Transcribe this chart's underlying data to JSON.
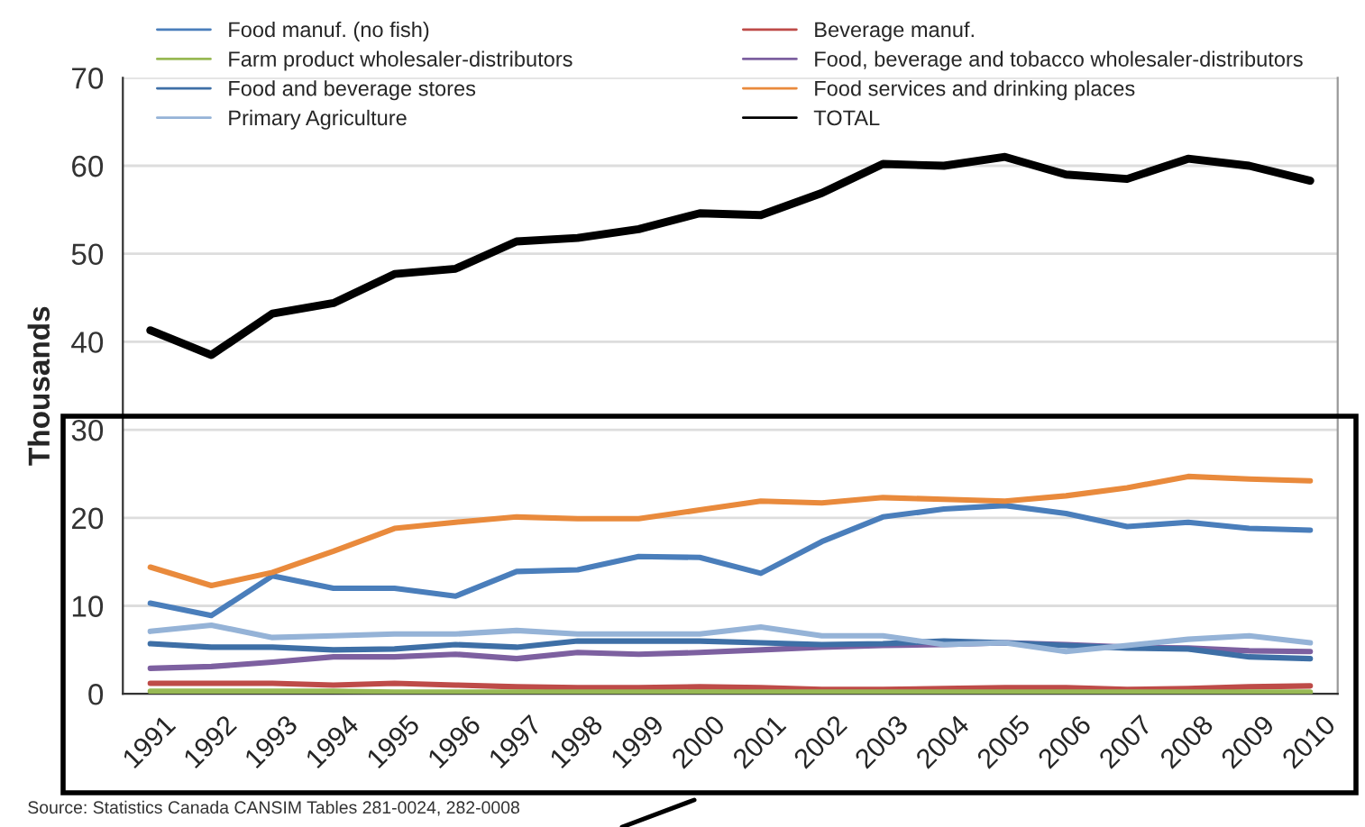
{
  "chart_data": {
    "type": "line",
    "ylabel": "Thousands",
    "categories": [
      "1991",
      "1992",
      "1993",
      "1994",
      "1995",
      "1996",
      "1997",
      "1998",
      "1999",
      "2000",
      "2001",
      "2002",
      "2003",
      "2004",
      "2005",
      "2006",
      "2007",
      "2008",
      "2009",
      "2010"
    ],
    "series": [
      {
        "name": "Food manuf. (no fish)",
        "color": "#4a7ebb",
        "values": [
          10.3,
          8.9,
          13.4,
          12.0,
          12.0,
          11.1,
          13.9,
          14.1,
          15.6,
          15.5,
          13.7,
          17.3,
          20.1,
          21.0,
          21.4,
          20.5,
          19.0,
          19.5,
          18.8,
          18.6
        ]
      },
      {
        "name": "Beverage manuf.",
        "color": "#be4b48",
        "values": [
          1.2,
          1.2,
          1.2,
          1.0,
          1.2,
          1.0,
          0.8,
          0.7,
          0.7,
          0.8,
          0.7,
          0.5,
          0.5,
          0.6,
          0.7,
          0.7,
          0.5,
          0.6,
          0.8,
          0.9
        ]
      },
      {
        "name": "Farm product wholesaler-distributors",
        "color": "#98b954",
        "values": [
          0.3,
          0.3,
          0.3,
          0.3,
          0.2,
          0.2,
          0.2,
          0.2,
          0.2,
          0.2,
          0.2,
          0.2,
          0.2,
          0.2,
          0.2,
          0.2,
          0.2,
          0.2,
          0.2,
          0.2
        ]
      },
      {
        "name": "Food, beverage and tobacco wholesaler-distributors",
        "color": "#7d60a0",
        "values": [
          2.9,
          3.1,
          3.6,
          4.2,
          4.2,
          4.5,
          4.0,
          4.7,
          4.5,
          4.7,
          5.0,
          5.3,
          5.5,
          5.6,
          5.8,
          5.6,
          5.3,
          5.2,
          4.9,
          4.8
        ]
      },
      {
        "name": "Food and beverage stores",
        "color": "#3e6fa6",
        "values": [
          5.7,
          5.3,
          5.3,
          5.0,
          5.1,
          5.6,
          5.3,
          6.0,
          6.0,
          6.0,
          5.8,
          5.6,
          5.7,
          6.0,
          5.8,
          5.5,
          5.2,
          5.1,
          4.2,
          4.0
        ]
      },
      {
        "name": "Food services and drinking places",
        "color": "#e98a3c",
        "values": [
          14.4,
          12.3,
          13.8,
          16.2,
          18.8,
          19.5,
          20.1,
          19.9,
          19.9,
          20.9,
          21.9,
          21.7,
          22.3,
          22.1,
          21.9,
          22.5,
          23.4,
          24.7,
          24.4,
          24.2
        ]
      },
      {
        "name": "Primary Agriculture",
        "color": "#95b3d7",
        "values": [
          7.1,
          7.8,
          6.4,
          6.6,
          6.8,
          6.8,
          7.2,
          6.8,
          6.8,
          6.8,
          7.6,
          6.6,
          6.6,
          5.6,
          5.8,
          4.8,
          5.5,
          6.2,
          6.6,
          5.8
        ]
      },
      {
        "name": "TOTAL",
        "color": "#000000",
        "values": [
          41.3,
          38.5,
          43.2,
          44.4,
          47.7,
          48.3,
          51.4,
          51.8,
          52.8,
          54.6,
          54.4,
          56.9,
          60.2,
          60.0,
          61.0,
          59.0,
          58.5,
          60.8,
          60.0,
          58.3
        ]
      }
    ],
    "ylim": [
      0,
      70
    ],
    "yticks": [
      0,
      10,
      20,
      30,
      40,
      50,
      60,
      70
    ],
    "grid": "y",
    "legend": "top",
    "marker": "none",
    "line_style": "solid",
    "annotations": [
      "Source: Statistics Canada CANSIM Tables 281-0024, 282-0008"
    ]
  }
}
